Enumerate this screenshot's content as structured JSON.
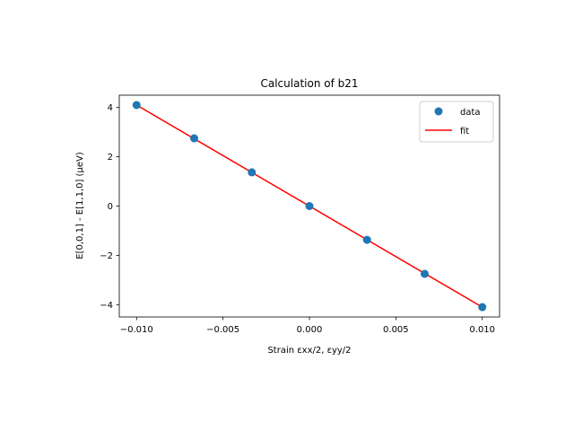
{
  "chart_data": {
    "type": "scatter",
    "title": "Calculation of b21",
    "xlabel": "Strain εxx/2, εyy/2",
    "ylabel": "E[0,0,1] - E[1,1,0] (μeV)",
    "xlim": [
      -0.011,
      0.011
    ],
    "ylim": [
      -4.5,
      4.5
    ],
    "xticks": [
      -0.01,
      -0.005,
      0.0,
      0.005,
      0.01
    ],
    "xtick_labels": [
      "−0.010",
      "−0.005",
      "0.000",
      "0.005",
      "0.010"
    ],
    "yticks": [
      4,
      2,
      0,
      -2,
      -4
    ],
    "ytick_labels": [
      "4",
      "2",
      "0",
      "−2",
      "−4"
    ],
    "grid": false,
    "legend_position": "top-right",
    "series": [
      {
        "name": "data",
        "kind": "scatter",
        "color": "#1f77b4",
        "x": [
          -0.01,
          -0.006667,
          -0.003333,
          0.0,
          0.003333,
          0.006667,
          0.01
        ],
        "y": [
          4.1,
          2.75,
          1.37,
          0.0,
          -1.37,
          -2.75,
          -4.1
        ]
      },
      {
        "name": "fit",
        "kind": "line",
        "color": "#ff0000",
        "x": [
          -0.01,
          0.01
        ],
        "y": [
          4.1,
          -4.1
        ]
      }
    ]
  }
}
